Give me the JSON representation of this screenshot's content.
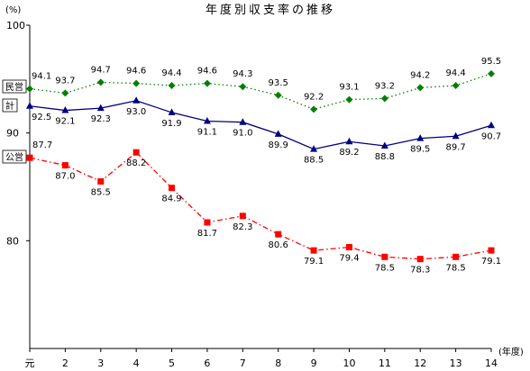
{
  "chart_data": {
    "type": "line",
    "title": "年度別収支率の推移",
    "y_unit": "(%)",
    "x_unit": "(年度)",
    "categories": [
      "元",
      "2",
      "3",
      "4",
      "5",
      "6",
      "7",
      "8",
      "9",
      "10",
      "11",
      "12",
      "13",
      "14"
    ],
    "ylim": [
      70,
      100
    ],
    "y_ticks": [
      80,
      90,
      100
    ],
    "grid": false,
    "series": [
      {
        "name": "民営",
        "color": "#008000",
        "marker": "diamond",
        "line_style": "dotted",
        "values": [
          94.1,
          93.7,
          94.7,
          94.6,
          94.4,
          94.6,
          94.3,
          93.5,
          92.2,
          93.1,
          93.2,
          94.2,
          94.4,
          95.5
        ],
        "labels": [
          "94.1",
          "93.7",
          "94.7",
          "94.6",
          "94.4",
          "94.6",
          "94.3",
          "93.5",
          "92.2",
          "93.1",
          "93.2",
          "94.2",
          "94.4",
          "95.5"
        ]
      },
      {
        "name": "計",
        "color": "#000080",
        "marker": "triangle",
        "line_style": "solid",
        "values": [
          92.5,
          92.1,
          92.3,
          93.0,
          91.9,
          91.1,
          91.0,
          89.9,
          88.5,
          89.2,
          88.8,
          89.5,
          89.7,
          90.7
        ],
        "labels": [
          "92.5",
          "92.1",
          "92.3",
          "93.0",
          "91.9",
          "91.1",
          "91.0",
          "89.9",
          "88.5",
          "89.2",
          "88.8",
          "89.5",
          "89.7",
          "90.7"
        ]
      },
      {
        "name": "公営",
        "color": "#ff0000",
        "marker": "square",
        "line_style": "dashdot",
        "values": [
          87.7,
          87.0,
          85.5,
          88.2,
          84.9,
          81.7,
          82.3,
          80.6,
          79.1,
          79.4,
          78.5,
          78.3,
          78.5,
          79.1
        ],
        "labels": [
          "87.7",
          "87.0",
          "85.5",
          "88.2",
          "84.9",
          "81.7",
          "82.3",
          "80.6",
          "79.1",
          "79.4",
          "78.5",
          "78.3",
          "78.5",
          "79.1"
        ]
      }
    ]
  }
}
